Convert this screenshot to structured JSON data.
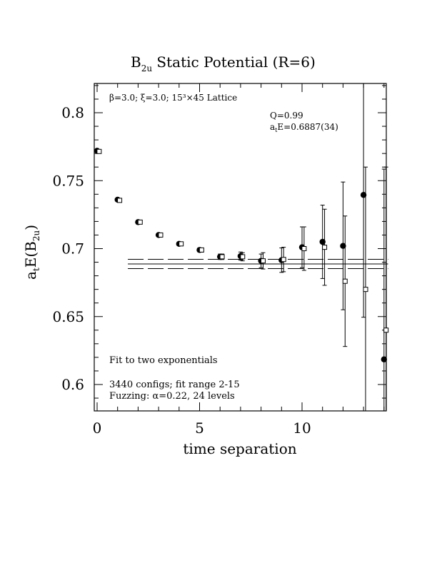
{
  "chart_data": {
    "type": "scatter",
    "title_main": "B",
    "title_sub": "2u",
    "title_rest": " Static Potential (R=6)",
    "xlabel": "time separation",
    "ylabel_main": "a",
    "ylabel_t": "t",
    "ylabel_mid": "E(B",
    "ylabel_sub": "2u",
    "ylabel_end": ")",
    "xlim": [
      0,
      14
    ],
    "ylim": [
      0.58,
      0.82
    ],
    "x_ticks": [
      0,
      5,
      10
    ],
    "x_tick_labels": [
      "0",
      "5",
      "10"
    ],
    "y_ticks": [
      0.6,
      0.65,
      0.7,
      0.75,
      0.8
    ],
    "y_tick_labels": [
      "0.6",
      "0.65",
      "0.7",
      "0.75",
      "0.8"
    ],
    "annotations": {
      "lattice": "β=3.0; ξ=3.0; 15³×45 Lattice",
      "q_value": "Q=0.99",
      "fit_energy_prefix": "a",
      "fit_energy_sub": "t",
      "fit_energy_rest": "E=0.6887(34)",
      "fit_note": "Fit to two exponentials",
      "configs": "3440 configs; fit range 2-15",
      "fuzzing": "Fuzzing: α=0.22, 24 levels"
    },
    "fit": {
      "value": 0.6887,
      "error": 0.0034,
      "x_start": 1.5,
      "x_end": 14.2
    },
    "series": [
      {
        "marker": "filled-circle",
        "points": [
          {
            "x": 0,
            "y": 0.772,
            "err": 0.001
          },
          {
            "x": 1,
            "y": 0.736,
            "err": 0.001
          },
          {
            "x": 2,
            "y": 0.7195,
            "err": 0.001
          },
          {
            "x": 3,
            "y": 0.71,
            "err": 0.0012
          },
          {
            "x": 4,
            "y": 0.7035,
            "err": 0.0013
          },
          {
            "x": 5,
            "y": 0.699,
            "err": 0.0015
          },
          {
            "x": 6,
            "y": 0.694,
            "err": 0.002
          },
          {
            "x": 7,
            "y": 0.6945,
            "err": 0.003
          },
          {
            "x": 8,
            "y": 0.691,
            "err": 0.005
          },
          {
            "x": 9,
            "y": 0.6915,
            "err": 0.009
          },
          {
            "x": 10,
            "y": 0.701,
            "err": 0.015
          },
          {
            "x": 11,
            "y": 0.705,
            "err": 0.027
          },
          {
            "x": 12,
            "y": 0.702,
            "err": 0.047
          },
          {
            "x": 13,
            "y": 0.7395,
            "err": 0.09
          },
          {
            "x": 14,
            "y": 0.6185,
            "err": 0.14
          }
        ]
      },
      {
        "marker": "open-square",
        "points": [
          {
            "x": 0.1,
            "y": 0.7715,
            "err": 0.001
          },
          {
            "x": 1.1,
            "y": 0.7355,
            "err": 0.001
          },
          {
            "x": 2.1,
            "y": 0.7195,
            "err": 0.001
          },
          {
            "x": 3.1,
            "y": 0.71,
            "err": 0.0012
          },
          {
            "x": 4.1,
            "y": 0.7035,
            "err": 0.0013
          },
          {
            "x": 5.1,
            "y": 0.699,
            "err": 0.0015
          },
          {
            "x": 6.1,
            "y": 0.694,
            "err": 0.002
          },
          {
            "x": 7.1,
            "y": 0.694,
            "err": 0.003
          },
          {
            "x": 8.1,
            "y": 0.691,
            "err": 0.006
          },
          {
            "x": 9.1,
            "y": 0.692,
            "err": 0.009
          },
          {
            "x": 10.1,
            "y": 0.7,
            "err": 0.016
          },
          {
            "x": 11.1,
            "y": 0.701,
            "err": 0.028
          },
          {
            "x": 12.1,
            "y": 0.676,
            "err": 0.048
          },
          {
            "x": 13.1,
            "y": 0.67,
            "err": 0.09
          },
          {
            "x": 14.1,
            "y": 0.64,
            "err": 0.12
          }
        ]
      }
    ]
  }
}
